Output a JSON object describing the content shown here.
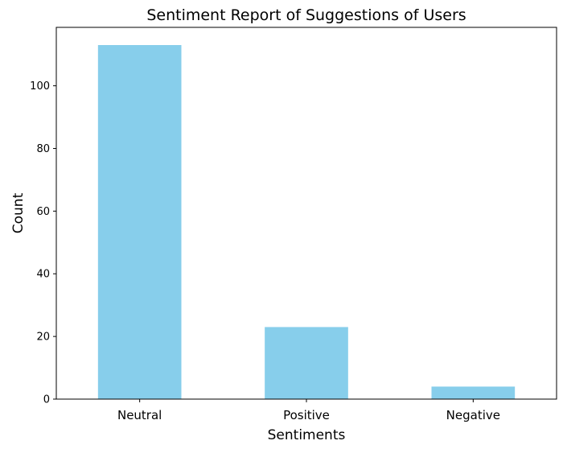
{
  "chart_data": {
    "type": "bar",
    "title": "Sentiment Report of Suggestions of Users",
    "xlabel": "Sentiments",
    "ylabel": "Count",
    "categories": [
      "Neutral",
      "Positive",
      "Negative"
    ],
    "values": [
      113,
      23,
      4
    ],
    "ylim": [
      0,
      118.65
    ],
    "yticks": [
      0,
      20,
      40,
      60,
      80,
      100
    ],
    "grid": false,
    "bar_color": "#87CEEB"
  }
}
